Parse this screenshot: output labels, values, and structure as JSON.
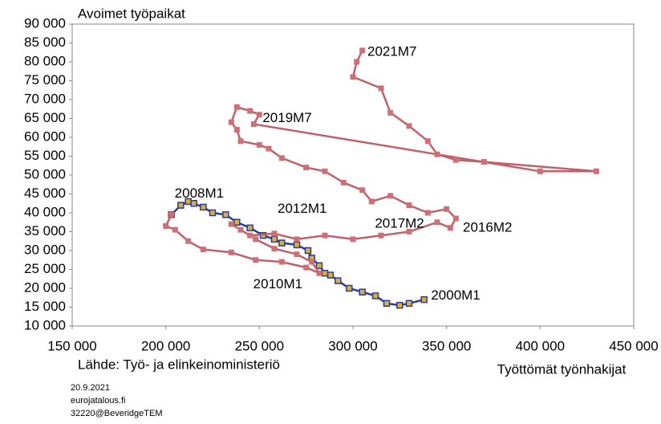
{
  "chart_data": {
    "type": "scatter",
    "y_axis_label": "Avoimet työpaikat",
    "x_axis_label": "Työttömät työnhakijat",
    "source": "Lähde: Työ- ja elinkeinoministeriö",
    "footer": [
      "20.9.2021",
      "eurojatalous.fi",
      "32220@BeveridgeTEM"
    ],
    "xlim": [
      150000,
      450000
    ],
    "ylim": [
      10000,
      90000
    ],
    "xticks": [
      {
        "value": 150000,
        "label": "150 000"
      },
      {
        "value": 200000,
        "label": "200 000"
      },
      {
        "value": 250000,
        "label": "250 000"
      },
      {
        "value": 300000,
        "label": "300 000"
      },
      {
        "value": 350000,
        "label": "350 000"
      },
      {
        "value": 400000,
        "label": "400 000"
      },
      {
        "value": 450000,
        "label": "450 000"
      }
    ],
    "yticks": [
      {
        "value": 10000,
        "label": "10 000"
      },
      {
        "value": 15000,
        "label": "15 000"
      },
      {
        "value": 20000,
        "label": "20 000"
      },
      {
        "value": 25000,
        "label": "25 000"
      },
      {
        "value": 30000,
        "label": "30 000"
      },
      {
        "value": 35000,
        "label": "35 000"
      },
      {
        "value": 40000,
        "label": "40 000"
      },
      {
        "value": 45000,
        "label": "45 000"
      },
      {
        "value": 50000,
        "label": "50 000"
      },
      {
        "value": 55000,
        "label": "55 000"
      },
      {
        "value": 60000,
        "label": "60 000"
      },
      {
        "value": 65000,
        "label": "65 000"
      },
      {
        "value": 70000,
        "label": "70 000"
      },
      {
        "value": 75000,
        "label": "75 000"
      },
      {
        "value": 80000,
        "label": "80 000"
      },
      {
        "value": 85000,
        "label": "85 000"
      },
      {
        "value": 90000,
        "label": "90 000"
      }
    ],
    "series": [
      {
        "color": "#2e3d8f",
        "marker": "#d9b13a",
        "x": [
          338000,
          330000,
          325000,
          318000,
          312000,
          305000,
          298000,
          292000,
          288000,
          285000,
          282000,
          278000,
          276000,
          270000,
          262000,
          258000,
          252000,
          245000,
          238000,
          232000,
          225000,
          220000,
          215000,
          212000,
          208000,
          203000
        ],
        "values": [
          17000,
          16000,
          15500,
          16000,
          18000,
          19000,
          20000,
          22000,
          23500,
          24000,
          26000,
          28000,
          30000,
          31500,
          32000,
          33000,
          34000,
          36000,
          37500,
          39500,
          40000,
          41500,
          42500,
          43000,
          42000,
          39500
        ]
      },
      {
        "color": "#c0606a",
        "marker": "#cc7078",
        "x": [
          203000,
          200000,
          205000,
          212000,
          220000,
          235000,
          248000,
          262000,
          275000,
          282000,
          278000,
          270000,
          258000,
          248000,
          240000,
          235000,
          245000,
          258000,
          270000,
          285000,
          300000,
          315000,
          330000,
          345000,
          352000,
          355000,
          350000,
          340000,
          330000,
          320000,
          310000,
          305000,
          295000,
          285000,
          275000,
          262000,
          255000,
          250000,
          240000,
          238000,
          235000,
          238000,
          245000,
          250000,
          247000,
          400000,
          430000,
          370000,
          355000,
          345000,
          340000,
          330000,
          320000,
          315000,
          300000,
          302000,
          305000
        ],
        "values": [
          39500,
          36500,
          35500,
          32500,
          30300,
          29500,
          27500,
          27000,
          25500,
          24000,
          27000,
          29000,
          30500,
          33000,
          35500,
          37000,
          34000,
          34500,
          33000,
          34000,
          33000,
          34000,
          35000,
          37500,
          36000,
          38500,
          41000,
          40000,
          42000,
          44500,
          43000,
          46000,
          48000,
          51000,
          52000,
          54500,
          57000,
          58000,
          59000,
          62000,
          64000,
          68000,
          67000,
          66000,
          63500,
          51000,
          51000,
          53500,
          54000,
          55500,
          59000,
          63000,
          66500,
          73000,
          76000,
          80000,
          83000
        ]
      }
    ],
    "annotations": [
      {
        "text": "2021M7",
        "x": 306000,
        "y": 82500
      },
      {
        "text": "2019M7",
        "x": 250000,
        "y": 65000
      },
      {
        "text": "2008M1",
        "x": 203000,
        "y": 45000
      },
      {
        "text": "2012M1",
        "x": 258000,
        "y": 41000
      },
      {
        "text": "2017M2",
        "x": 310000,
        "y": 37000
      },
      {
        "text": "2016M2",
        "x": 357000,
        "y": 36000
      },
      {
        "text": "2010M1",
        "x": 245000,
        "y": 21000
      },
      {
        "text": "2000M1",
        "x": 340000,
        "y": 18000
      }
    ]
  }
}
